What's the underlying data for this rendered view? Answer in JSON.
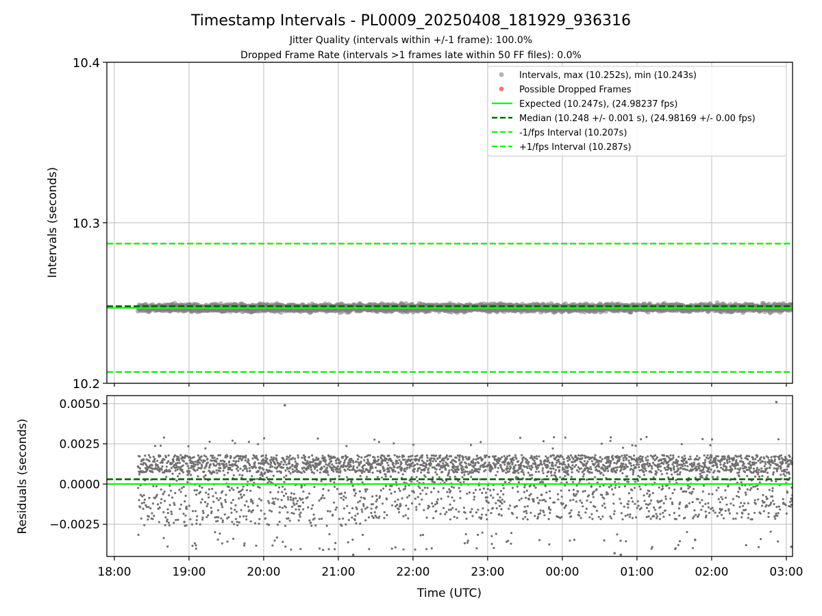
{
  "figure": {
    "title": "Timestamp Intervals - PL0009_20250408_181929_936316",
    "subtitle_1": "Jitter Quality (intervals within +/-1 frame): 100.0%",
    "subtitle_2": "Dropped Frame Rate (intervals >1 frames late within 50 FF files): 0.0%"
  },
  "chart_data": [
    {
      "type": "scatter",
      "panel": "top",
      "ylabel": "Intervals (seconds)",
      "ylim": [
        10.2,
        10.4
      ],
      "yticks": [
        10.2,
        10.3,
        10.4
      ],
      "ytick_labels": [
        "10.2",
        "10.3",
        "10.4"
      ],
      "xlim": [
        "2025-04-08 17:54",
        "2025-04-09 03:05"
      ],
      "xticks": [
        "2025-04-08 18:00",
        "2025-04-08 19:00",
        "2025-04-08 20:00",
        "2025-04-08 21:00",
        "2025-04-08 22:00",
        "2025-04-08 23:00",
        "2025-04-09 00:00",
        "2025-04-09 01:00",
        "2025-04-09 02:00",
        "2025-04-09 03:00"
      ],
      "grid": true,
      "legend_position": "top-right",
      "data_range": {
        "start": "2025-04-08 18:19",
        "end": "2025-04-09 03:05"
      },
      "series": [
        {
          "name": "Intervals, max (10.252s), min (10.243s)",
          "kind": "scatter",
          "color": "#808080",
          "ymin": 10.243,
          "ymax": 10.252,
          "center": 10.247
        },
        {
          "name": "Possible Dropped Frames",
          "kind": "scatter",
          "color": "#ff5555",
          "points": []
        }
      ],
      "lines": [
        {
          "name": "Expected (10.247s), (24.98237 fps)",
          "y": 10.247,
          "style": "solid",
          "color": "#22ee22"
        },
        {
          "name": "Median (10.248 +/- 0.001 s), (24.98169 +/- 0.00 fps)",
          "y": 10.248,
          "style": "dashed",
          "color": "#006400"
        },
        {
          "name": "-1/fps Interval (10.207s)",
          "y": 10.207,
          "style": "dashed",
          "color": "#22ee22"
        },
        {
          "name": "+1/fps Interval (10.287s)",
          "y": 10.287,
          "style": "dashed",
          "color": "#22ee22"
        }
      ]
    },
    {
      "type": "scatter",
      "panel": "bottom",
      "xlabel": "Time (UTC)",
      "ylabel": "Residuals (seconds)",
      "ylim": [
        -0.0045,
        0.0055
      ],
      "yticks": [
        -0.0025,
        0.0,
        0.0025,
        0.005
      ],
      "ytick_labels": [
        "−0.0025",
        "0.0000",
        "0.0025",
        "0.0050"
      ],
      "xlim": [
        "2025-04-08 17:54",
        "2025-04-09 03:05"
      ],
      "xticks": [
        "2025-04-08 18:00",
        "2025-04-08 19:00",
        "2025-04-08 20:00",
        "2025-04-08 21:00",
        "2025-04-08 22:00",
        "2025-04-08 23:00",
        "2025-04-09 00:00",
        "2025-04-09 01:00",
        "2025-04-09 02:00",
        "2025-04-09 03:00"
      ],
      "xtick_labels": [
        "18:00",
        "19:00",
        "20:00",
        "21:00",
        "22:00",
        "23:00",
        "00:00",
        "01:00",
        "02:00",
        "03:00"
      ],
      "grid": true,
      "series": [
        {
          "kind": "scatter",
          "color": "#707070",
          "ymin": -0.0045,
          "ymax": 0.0051,
          "band_low": -0.0024,
          "band_high": 0.0018
        }
      ],
      "lines": [
        {
          "y": 0.0,
          "style": "solid",
          "color": "#22ee22"
        },
        {
          "y": 0.0003,
          "style": "dashed",
          "color": "#006400"
        }
      ],
      "outliers": [
        {
          "x": "2025-04-08 20:17",
          "y": 0.0049
        },
        {
          "x": "2025-04-09 02:52",
          "y": 0.0051
        },
        {
          "x": "2025-04-08 21:12",
          "y": -0.0044
        },
        {
          "x": "2025-04-09 00:42",
          "y": -0.0043
        },
        {
          "x": "2025-04-09 00:47",
          "y": -0.0044
        },
        {
          "x": "2025-04-09 03:04",
          "y": -0.0039
        }
      ]
    }
  ]
}
